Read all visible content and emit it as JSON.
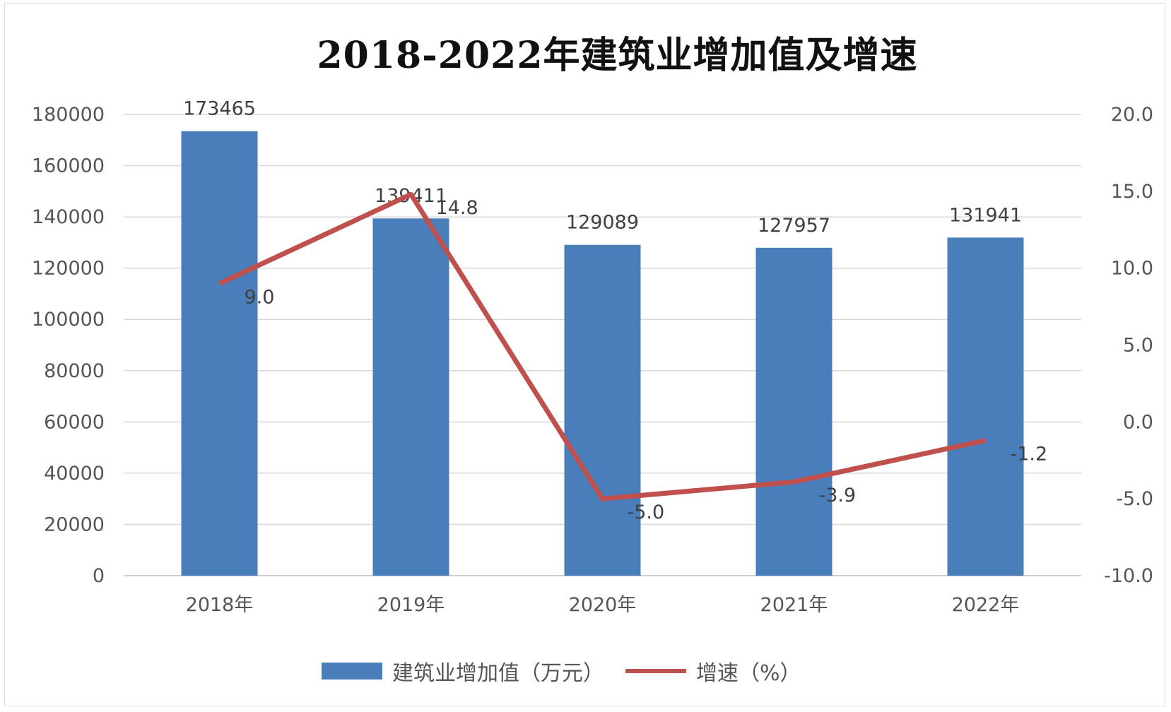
{
  "chart_data": {
    "type": "bar+line",
    "title": "2018-2022年建筑业增加值及增速",
    "categories": [
      "2018年",
      "2019年",
      "2020年",
      "2021年",
      "2022年"
    ],
    "series": [
      {
        "name": "建筑业增加值（万元）",
        "type": "bar",
        "axis": "left",
        "values": [
          173465,
          139411,
          129089,
          127957,
          131941
        ],
        "labels": [
          "173465",
          "139411",
          "129089",
          "127957",
          "131941"
        ]
      },
      {
        "name": "增速（%）",
        "type": "line",
        "axis": "right",
        "values": [
          9.0,
          14.8,
          -5.0,
          -3.9,
          -1.2
        ],
        "labels": [
          "9.0",
          "14.8",
          "-5.0",
          "-3.9",
          "-1.2"
        ]
      }
    ],
    "left_axis": {
      "ylim": [
        0,
        180000
      ],
      "ticks": [
        "0",
        "20000",
        "40000",
        "60000",
        "80000",
        "100000",
        "120000",
        "140000",
        "160000",
        "180000"
      ]
    },
    "right_axis": {
      "ylim": [
        -10.0,
        20.0
      ],
      "ticks": [
        "-10.0",
        "-5.0",
        "0.0",
        "5.0",
        "10.0",
        "15.0",
        "20.0"
      ]
    },
    "grid": true,
    "legend": "bottom",
    "colors": {
      "bar": "#4a7ebb",
      "line": "#c0504d",
      "grid": "#d9d9d9"
    }
  }
}
